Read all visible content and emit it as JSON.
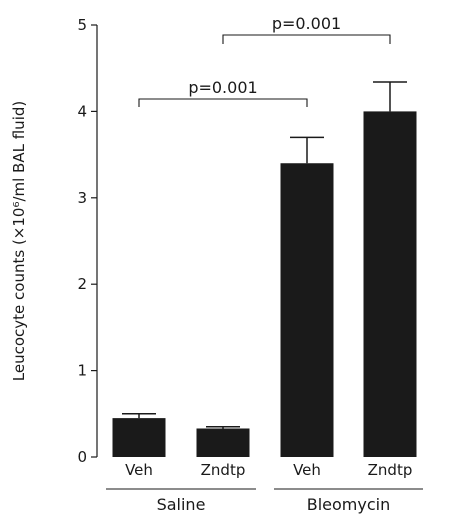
{
  "chart_data": {
    "type": "bar",
    "ylabel": "Leucocyte counts (×10⁶/ml BAL fluid)",
    "ylim": [
      0,
      5
    ],
    "yticks": [
      "0",
      "1",
      "2",
      "3",
      "4",
      "5"
    ],
    "categories": [
      "Veh",
      "Zndtp",
      "Veh",
      "Zndtp"
    ],
    "values": [
      0.45,
      0.33,
      3.4,
      4.0
    ],
    "errors": [
      0.05,
      0.02,
      0.3,
      0.34
    ],
    "groups": [
      {
        "label": "Saline",
        "categories": [
          0,
          1
        ]
      },
      {
        "label": "Bleomycin",
        "categories": [
          2,
          3
        ]
      }
    ],
    "significance": [
      {
        "text": "p=0.001",
        "from": 0,
        "to": 2
      },
      {
        "text": "p=0.001",
        "from": 1,
        "to": 3
      }
    ],
    "bar_color": "#1a1a1a"
  }
}
